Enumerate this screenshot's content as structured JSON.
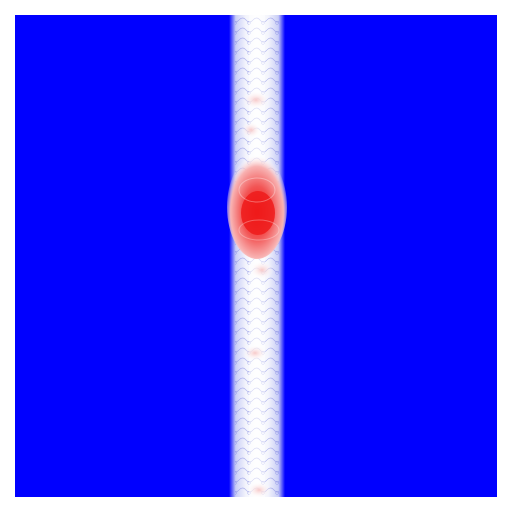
{
  "image": {
    "kind": "scalar field heatmap",
    "colormap": [
      "#0000ff",
      "#ffffff",
      "#ff0000"
    ],
    "background_color": "#0000ff",
    "band_color": "#ffffff",
    "hot_color": "#ff0000",
    "frame_color": "#ffffff"
  }
}
